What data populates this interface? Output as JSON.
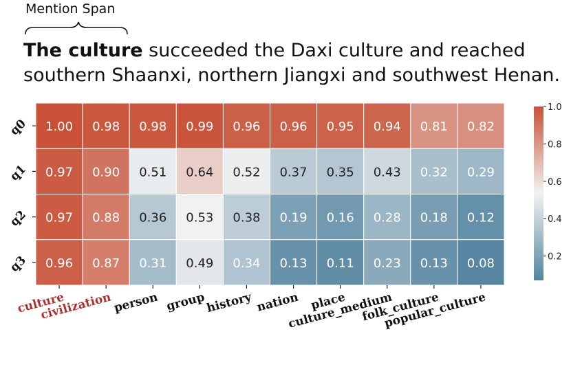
{
  "header": {
    "mention_label": "Mention Span",
    "sentence_bold": "The culture",
    "sentence_line1_rest": " succeeded the Daxi culture and reached",
    "sentence_line2": "southern Shaanxi, northern Jiangxi and southwest Henan."
  },
  "chart_data": {
    "type": "heatmap",
    "rows": [
      "q0",
      "q1",
      "q2",
      "q3"
    ],
    "columns": [
      "culture",
      "civilization",
      "person",
      "group",
      "history",
      "nation",
      "place",
      "culture_medium",
      "folk_culture",
      "popular_culture"
    ],
    "values": [
      [
        1.0,
        0.98,
        0.98,
        0.99,
        0.96,
        0.96,
        0.95,
        0.94,
        0.81,
        0.82
      ],
      [
        0.97,
        0.9,
        0.51,
        0.64,
        0.52,
        0.37,
        0.35,
        0.43,
        0.32,
        0.29
      ],
      [
        0.97,
        0.88,
        0.36,
        0.53,
        0.38,
        0.19,
        0.16,
        0.28,
        0.18,
        0.12
      ],
      [
        0.96,
        0.87,
        0.31,
        0.49,
        0.34,
        0.13,
        0.11,
        0.23,
        0.13,
        0.08
      ]
    ],
    "value_labels": [
      [
        "1.00",
        "0.98",
        "0.98",
        "0.99",
        "0.96",
        "0.96",
        "0.95",
        "0.94",
        "0.81",
        "0.82"
      ],
      [
        "0.97",
        "0.90",
        "0.51",
        "0.64",
        "0.52",
        "0.37",
        "0.35",
        "0.43",
        "0.32",
        "0.29"
      ],
      [
        "0.97",
        "0.88",
        "0.36",
        "0.53",
        "0.38",
        "0.19",
        "0.16",
        "0.28",
        "0.18",
        "0.12"
      ],
      [
        "0.96",
        "0.87",
        "0.31",
        "0.49",
        "0.34",
        "0.13",
        "0.11",
        "0.23",
        "0.13",
        "0.08"
      ]
    ],
    "highlighted_columns": [
      "culture",
      "civilization"
    ],
    "colorbar": {
      "range": [
        0.07,
        1.0
      ],
      "ticks": [
        1.0,
        0.8,
        0.6,
        0.4,
        0.2
      ],
      "tick_labels": [
        "1.0",
        "0.8",
        "0.6",
        "0.4",
        "0.2"
      ]
    },
    "colors": {
      "low": "#5384a0",
      "mid": "#f2f2f2",
      "high": "#c85137",
      "highlight_label": "#b03030",
      "text_dark": "#222222",
      "text_light": "#ffffff"
    }
  }
}
